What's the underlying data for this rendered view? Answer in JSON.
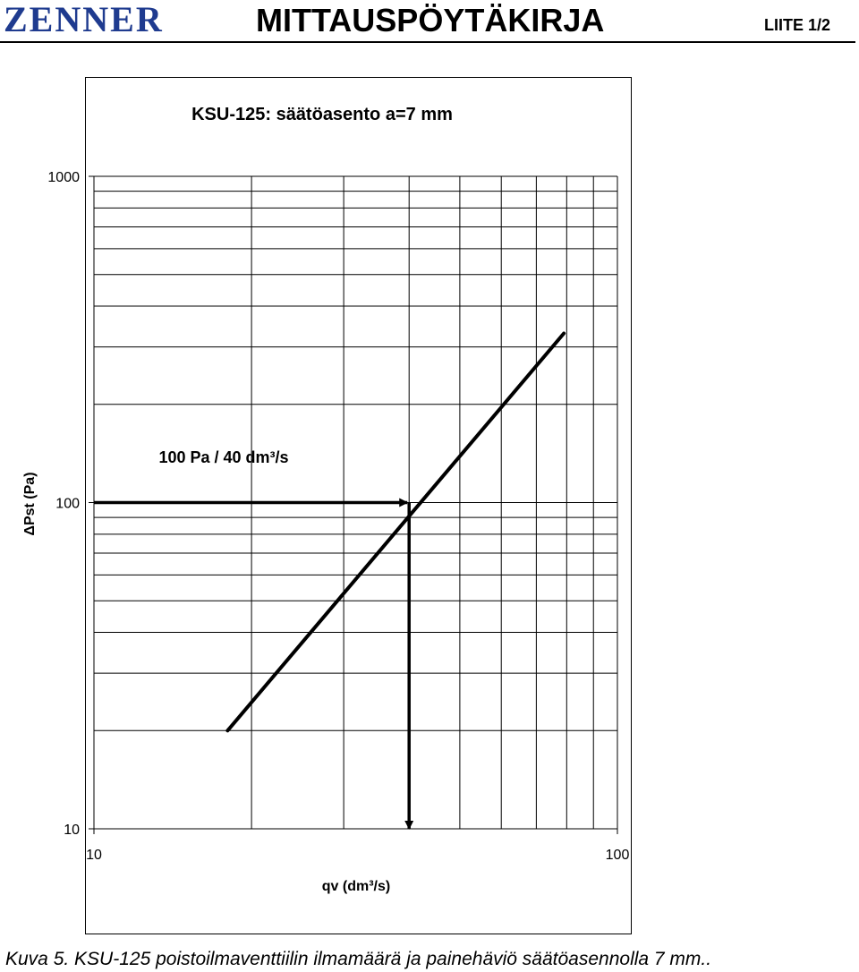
{
  "header": {
    "logo_text": "ZENNER",
    "title": "MITTAUSPÖYTÄKIRJA",
    "appendix": "LIITE 1/2"
  },
  "chart_data": {
    "type": "line",
    "title": "KSU-125: säätöasento a=7 mm",
    "xlabel": "qv (dm³/s)",
    "ylabel": "ΔPst (Pa)",
    "x_scale": "log",
    "y_scale": "log",
    "xlim": [
      10,
      100
    ],
    "ylim": [
      10,
      1000
    ],
    "x_ticks": [
      "10",
      "100"
    ],
    "y_ticks": [
      "1000",
      "100",
      "10"
    ],
    "grid": true,
    "series": [
      {
        "x": [
          18,
          79
        ],
        "y": [
          20,
          330
        ]
      }
    ],
    "annotation": {
      "text": "100 Pa / 40 dm³/s",
      "x": 40,
      "y": 100
    }
  },
  "caption": "Kuva 5. KSU-125 poistoilmaventtiilin ilmamäärä ja painehäviö säätöasennolla 7 mm.."
}
